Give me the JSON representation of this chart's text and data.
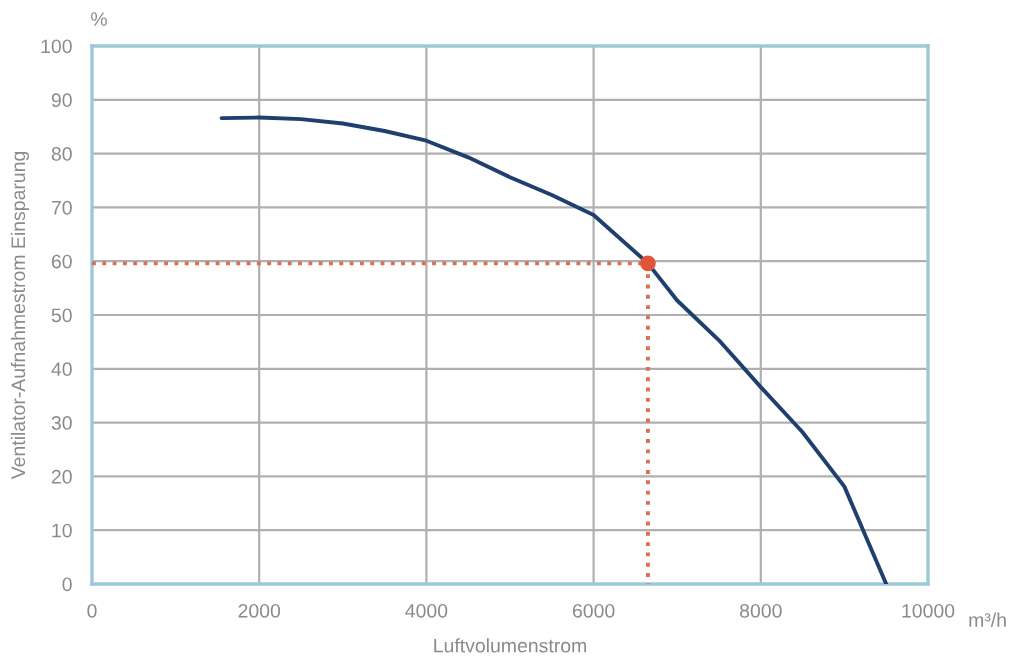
{
  "chart_data": {
    "type": "line",
    "xlabel": "Luftvolumenstrom",
    "ylabel": "Ventilator-Aufnahmestrom Einsparung",
    "annotations": [
      "%",
      "m³/h"
    ],
    "xlim": [
      0,
      10000
    ],
    "ylim": [
      0,
      100
    ],
    "xticks": [
      0,
      2000,
      4000,
      6000,
      8000,
      10000
    ],
    "yticks": [
      0,
      10,
      20,
      30,
      40,
      50,
      60,
      70,
      80,
      90,
      100
    ],
    "grid": true,
    "series": [
      {
        "color": "#1f3f6e",
        "line_style": "solid",
        "x": [
          1550,
          2000,
          2500,
          3000,
          3500,
          4000,
          4500,
          5000,
          5500,
          6000,
          6650,
          7000,
          7500,
          8000,
          8500,
          9000,
          9500
        ],
        "values": [
          86.6,
          86.7,
          86.4,
          85.6,
          84.2,
          82.4,
          79.3,
          75.6,
          72.3,
          68.6,
          59.6,
          52.7,
          45.3,
          36.6,
          28.2,
          18.1,
          0
        ]
      },
      {
        "type": "line",
        "color": "#d9704f",
        "line_style": "dotted",
        "x": [
          0,
          6650,
          6650
        ],
        "values": [
          59.6,
          59.6,
          0
        ]
      },
      {
        "type": "scatter",
        "color": "#e0553a",
        "marker": "circle",
        "x": [
          6650
        ],
        "values": [
          59.6
        ]
      }
    ]
  }
}
